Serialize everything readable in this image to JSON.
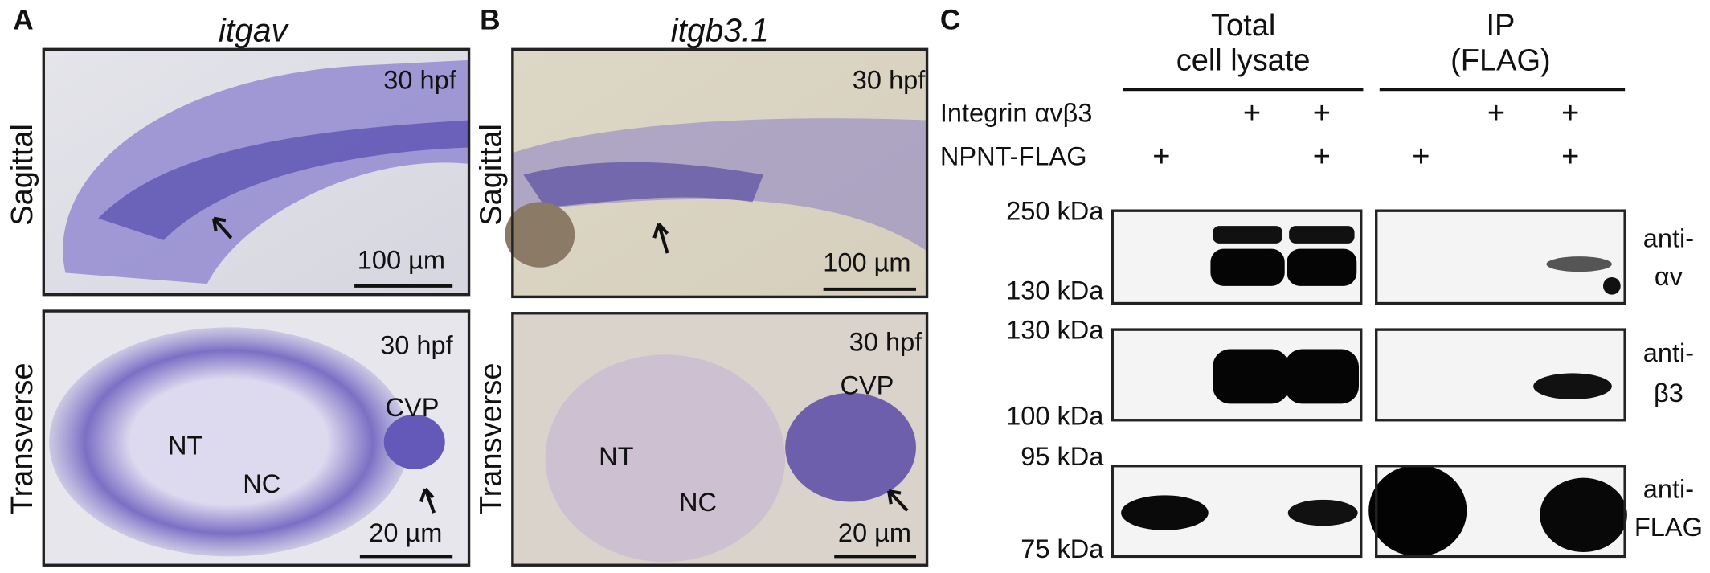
{
  "panel_a": {
    "label": "A",
    "title": "itgav",
    "rows": [
      "Sagittal",
      "Transverse"
    ],
    "sagittal": {
      "stage": "30 hpf",
      "scale": "100 µm"
    },
    "transverse": {
      "stage": "30 hpf",
      "cvp": "CVP",
      "nt": "NT",
      "nc": "NC",
      "scale": "20 µm"
    }
  },
  "panel_b": {
    "label": "B",
    "title": "itgb3.1",
    "rows": [
      "Sagittal",
      "Transverse"
    ],
    "sagittal": {
      "stage": "30 hpf",
      "scale": "100 µm"
    },
    "transverse": {
      "stage": "30 hpf",
      "cvp": "CVP",
      "nt": "NT",
      "nc": "NC",
      "scale": "20 µm"
    }
  },
  "panel_c": {
    "label": "C",
    "groups": [
      {
        "lines": [
          "Total",
          "cell lysate"
        ]
      },
      {
        "lines": [
          "IP",
          "(FLAG)"
        ]
      }
    ],
    "conditions": [
      {
        "label": "Integrin αvβ3",
        "marks": [
          null,
          "+",
          "+",
          null,
          "+",
          "+"
        ]
      },
      {
        "label": "NPNT-FLAG",
        "marks": [
          "+",
          null,
          "+",
          "+",
          null,
          "+"
        ]
      }
    ],
    "blots": [
      {
        "markers": [
          "250 kDa",
          "130 kDa"
        ],
        "antibody": [
          "anti-",
          "αv"
        ]
      },
      {
        "markers": [
          "130 kDa",
          "100 kDa"
        ],
        "antibody": [
          "anti-",
          "β3"
        ]
      },
      {
        "markers": [
          "95 kDa",
          "75 kDa"
        ],
        "antibody": [
          "anti-",
          "FLAG"
        ]
      }
    ]
  }
}
